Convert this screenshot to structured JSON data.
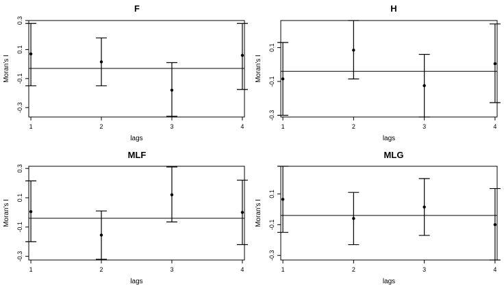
{
  "chart_data": [
    {
      "type": "scatter",
      "title": "F",
      "xlabel": "lags",
      "ylabel": "Moran's I",
      "x": [
        1,
        2,
        3,
        4
      ],
      "estimate": [
        0.07,
        0.015,
        -0.18,
        0.06
      ],
      "lower": [
        -0.15,
        -0.15,
        -0.36,
        -0.175
      ],
      "upper": [
        0.28,
        0.18,
        0.01,
        0.28
      ],
      "reference": -0.03,
      "xticks": [
        "1",
        "2",
        "3",
        "4"
      ],
      "yticks": [
        "0.3",
        "0.1",
        "-0.1",
        "-0.3"
      ],
      "ytick_values": [
        0.3,
        0.1,
        -0.1,
        -0.3
      ],
      "xlim": [
        0.97,
        4.03
      ],
      "ylim": [
        -0.365,
        0.3
      ],
      "grid": false
    },
    {
      "type": "scatter",
      "title": "H",
      "xlabel": "lags",
      "ylabel": "Moran's I",
      "x": [
        1,
        2,
        3,
        4
      ],
      "estimate": [
        -0.085,
        0.085,
        -0.125,
        0.005
      ],
      "lower": [
        -0.3,
        -0.085,
        -0.31,
        -0.225
      ],
      "upper": [
        0.13,
        0.26,
        0.06,
        0.24
      ],
      "reference": -0.04,
      "xticks": [
        "1",
        "2",
        "3",
        "4"
      ],
      "yticks": [
        "0.1",
        "-0.1",
        "-0.3"
      ],
      "ytick_values": [
        0.1,
        -0.1,
        -0.3
      ],
      "xlim": [
        0.97,
        4.03
      ],
      "ylim": [
        -0.31,
        0.26
      ],
      "grid": false
    },
    {
      "type": "scatter",
      "title": "MLF",
      "xlabel": "lags",
      "ylabel": "Moran's I",
      "x": [
        1,
        2,
        3,
        4
      ],
      "estimate": [
        0.005,
        -0.155,
        0.12,
        0.0
      ],
      "lower": [
        -0.2,
        -0.32,
        -0.065,
        -0.22
      ],
      "upper": [
        0.215,
        0.01,
        0.31,
        0.22
      ],
      "reference": -0.04,
      "xticks": [
        "1",
        "2",
        "3",
        "4"
      ],
      "yticks": [
        "0.3",
        "0.1",
        "-0.1",
        "-0.3"
      ],
      "ytick_values": [
        0.3,
        0.1,
        -0.1,
        -0.3
      ],
      "xlim": [
        0.97,
        4.03
      ],
      "ylim": [
        -0.325,
        0.315
      ],
      "grid": false
    },
    {
      "type": "scatter",
      "title": "MLG",
      "xlabel": "lags",
      "ylabel": "Moran's I",
      "x": [
        1,
        2,
        3,
        4
      ],
      "estimate": [
        0.065,
        -0.06,
        0.015,
        -0.1
      ],
      "lower": [
        -0.15,
        -0.23,
        -0.17,
        -0.33
      ],
      "upper": [
        0.28,
        0.11,
        0.2,
        0.135
      ],
      "reference": -0.04,
      "xticks": [
        "1",
        "2",
        "3",
        "4"
      ],
      "yticks": [
        "0.1",
        "-0.1",
        "-0.3"
      ],
      "ytick_values": [
        0.1,
        -0.1,
        -0.3
      ],
      "xlim": [
        0.97,
        4.03
      ],
      "ylim": [
        -0.33,
        0.28
      ],
      "grid": false
    }
  ]
}
